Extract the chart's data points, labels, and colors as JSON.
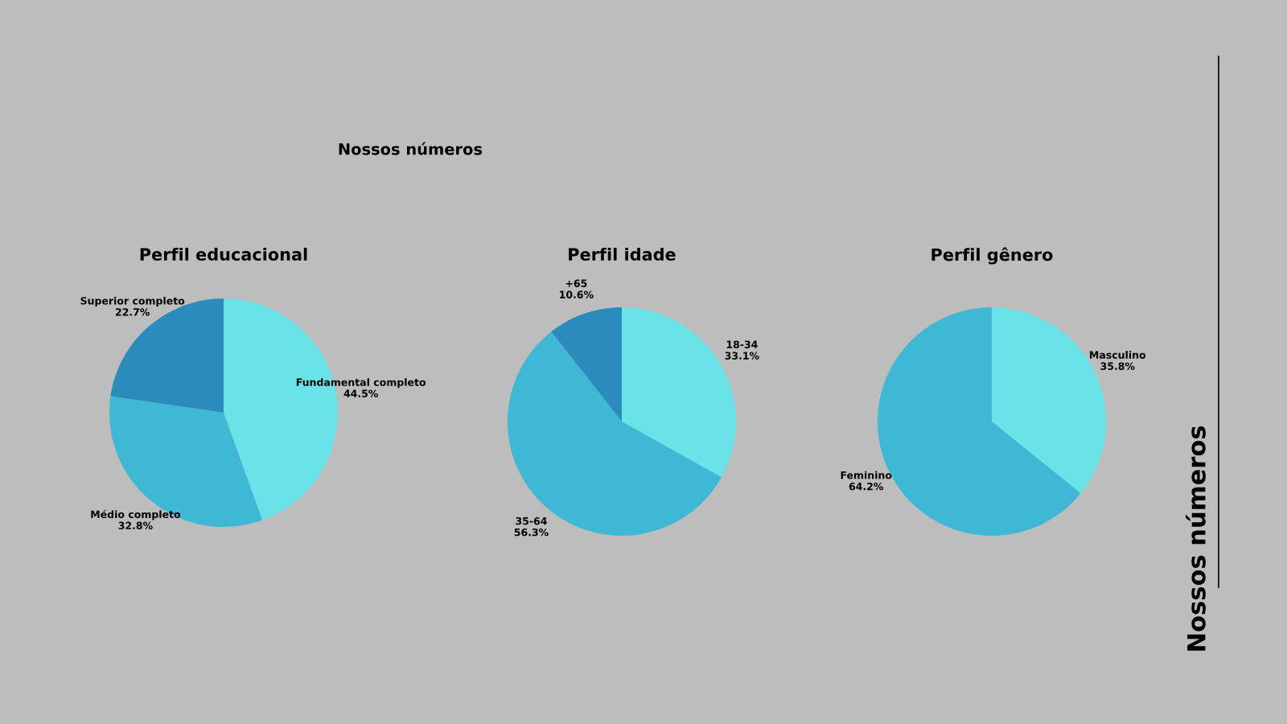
{
  "chart_data": [
    {
      "type": "pie",
      "title": "Perfil educacional",
      "annotations": [
        "Nossos números"
      ],
      "categories": [
        "Fundamental completo",
        "Médio completo",
        "Superior completo"
      ],
      "values": [
        44.5,
        32.8,
        22.7
      ],
      "value_labels": [
        "44.5%",
        "32.8%",
        "22.7%"
      ],
      "colors": [
        "#6ae3e8",
        "#3fb8d6",
        "#2a8bbd"
      ]
    },
    {
      "type": "pie",
      "title": "Perfil idade",
      "categories": [
        "18-34",
        "35-64",
        "+65"
      ],
      "values": [
        33.1,
        56.3,
        10.6
      ],
      "value_labels": [
        "33.1%",
        "56.3%",
        "10.6%"
      ],
      "colors": [
        "#6ae3e8",
        "#3fb8d6",
        "#2a8bbd"
      ]
    },
    {
      "type": "pie",
      "title": "Perfil gênero",
      "annotations": [
        "Nossos números"
      ],
      "categories": [
        "Masculino",
        "Feminino"
      ],
      "values": [
        35.8,
        64.2
      ],
      "value_labels": [
        "35.8%",
        "64.2%"
      ],
      "colors": [
        "#6ae3e8",
        "#3fb8d6"
      ]
    }
  ]
}
